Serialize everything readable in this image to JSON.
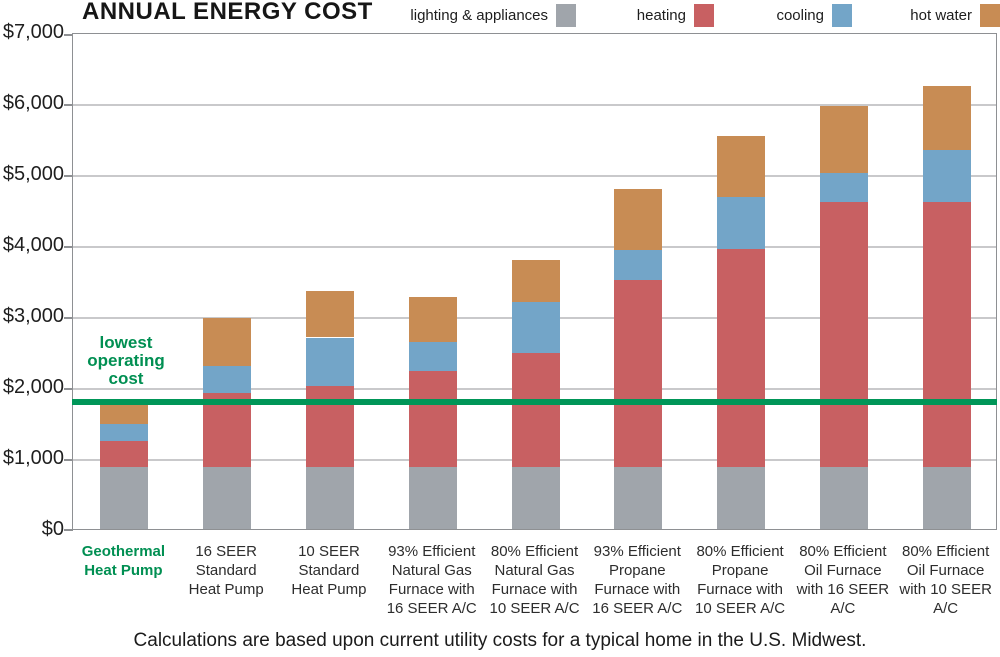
{
  "header": {
    "title": "ANNUAL ENERGY COST"
  },
  "legend": {
    "items": [
      {
        "label": "lighting & appliances",
        "color": "#a0a5ab"
      },
      {
        "label": "heating",
        "color": "#c86062"
      },
      {
        "label": "cooling",
        "color": "#73a5c8"
      },
      {
        "label": "hot water",
        "color": "#c88c54"
      }
    ]
  },
  "annotation": {
    "text": "lowest operating cost",
    "color": "#008f52"
  },
  "caption": {
    "text": "Calculations are based upon current utility costs for a typical home in the U.S. Midwest."
  },
  "chart_data": {
    "type": "bar",
    "stacked": true,
    "title": "ANNUAL ENERGY COST",
    "ylim": [
      0,
      7000
    ],
    "ytick_interval": 1000,
    "ytick_labels": [
      "$0",
      "$1,000",
      "$2,000",
      "$3,000",
      "$4,000",
      "$5,000",
      "$6,000",
      "$7,000"
    ],
    "grid": "horizontal",
    "legend_position": "top",
    "categories": [
      "Geothermal\nHeat Pump",
      "16 SEER\nStandard\nHeat Pump",
      "10 SEER\nStandard\nHeat Pump",
      "93% Efficient\nNatural Gas\nFurnace with\n16 SEER A/C",
      "80% Efficient\nNatural Gas\nFurnace with\n10 SEER A/C",
      "93% Efficient\nPropane\nFurnace with\n16 SEER  A/C",
      "80% Efficient\nPropane\nFurnace with\n10 SEER A/C",
      "80% Efficient\nOil Furnace\nwith 16 SEER\nA/C",
      "80% Efficient\nOil Furnace\nwith 10 SEER\nA/C"
    ],
    "highlight_category_index": 0,
    "highlight_category_color": "#008f52",
    "series": [
      {
        "name": "lighting & appliances",
        "color": "#a0a5ab",
        "values": [
          870,
          870,
          870,
          870,
          870,
          870,
          870,
          870,
          870
        ]
      },
      {
        "name": "heating",
        "color": "#c86062",
        "values": [
          370,
          1050,
          1150,
          1360,
          1610,
          2630,
          3080,
          3730,
          3730
        ]
      },
      {
        "name": "cooling",
        "color": "#73a5c8",
        "values": [
          245,
          380,
          680,
          410,
          720,
          425,
          730,
          410,
          740
        ]
      },
      {
        "name": "hot water",
        "color": "#c88c54",
        "values": [
          280,
          680,
          650,
          640,
          590,
          865,
          865,
          945,
          900
        ]
      }
    ],
    "totals": [
      1765,
      2980,
      3350,
      3280,
      3790,
      4790,
      5545,
      5955,
      6240
    ],
    "reference_line": {
      "label": "lowest operating cost",
      "value": 1820,
      "color": "#009658"
    },
    "footnote": "Calculations are based upon current utility costs for a typical home in the U.S. Midwest."
  }
}
